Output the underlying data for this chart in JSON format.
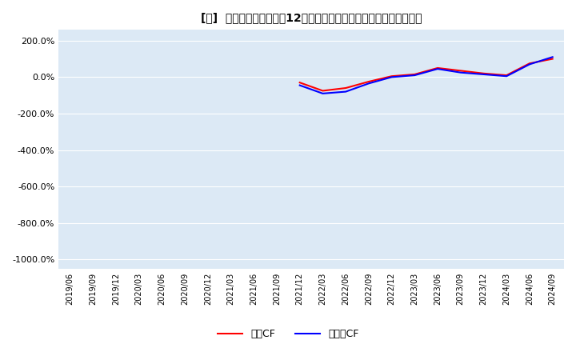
{
  "title": "[瀷]  キャッシュフローの12か月移動合計の対前年同期増減率の推移",
  "ylim": [
    -1050,
    260
  ],
  "yticks": [
    200,
    0,
    -200,
    -400,
    -600,
    -800,
    -1000
  ],
  "ytick_labels": [
    "200.0%",
    "0.0%",
    "-200.0%",
    "-400.0%",
    "-600.0%",
    "-800.0%",
    "-1000.0%"
  ],
  "x_labels": [
    "2019/06",
    "2019/09",
    "2019/12",
    "2020/03",
    "2020/06",
    "2020/09",
    "2020/12",
    "2021/03",
    "2021/06",
    "2021/09",
    "2021/12",
    "2022/03",
    "2022/06",
    "2022/09",
    "2022/12",
    "2023/03",
    "2023/06",
    "2023/09",
    "2023/12",
    "2024/03",
    "2024/06",
    "2024/09"
  ],
  "op_cf": [
    null,
    null,
    null,
    null,
    null,
    null,
    null,
    null,
    null,
    null,
    -30,
    -75,
    -60,
    -25,
    5,
    15,
    50,
    35,
    20,
    10,
    75,
    100
  ],
  "free_cf": [
    null,
    null,
    null,
    null,
    null,
    null,
    null,
    null,
    null,
    null,
    -45,
    -90,
    -80,
    -35,
    0,
    10,
    45,
    25,
    15,
    5,
    70,
    110
  ],
  "op_color": "#ff0000",
  "free_color": "#0000ff",
  "bg_color": "#ffffff",
  "plot_bg_color": "#dce9f5",
  "grid_color": "#ffffff",
  "legend_op": "営業CF",
  "legend_free": "フリーCF"
}
